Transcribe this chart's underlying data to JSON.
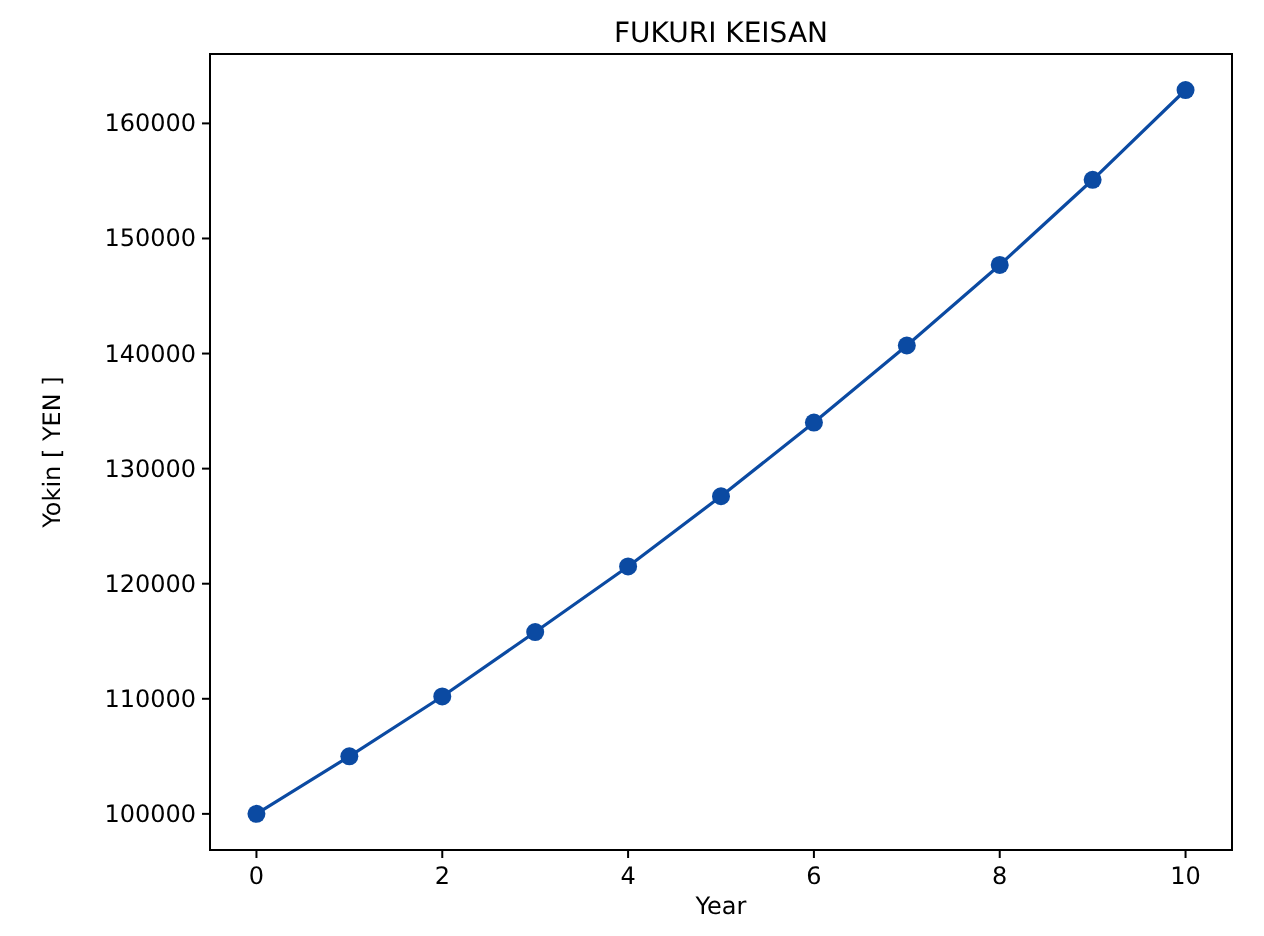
{
  "chart_data": {
    "type": "line",
    "title": "FUKURI KEISAN",
    "xlabel": "Year",
    "ylabel": "Yokin [ YEN ]",
    "x": [
      0,
      1,
      2,
      3,
      4,
      5,
      6,
      7,
      8,
      9,
      10
    ],
    "series": [
      {
        "color": "#0b4aa2",
        "values": [
          100000,
          105000,
          110200,
          115800,
          121500,
          127600,
          134000,
          140700,
          147700,
          155100,
          162900
        ]
      }
    ],
    "xlim": [
      -0.5,
      10.5
    ],
    "xticks": [
      0,
      2,
      4,
      6,
      8,
      10
    ],
    "ylim": [
      96860,
      166030
    ],
    "yticks": [
      100000,
      110000,
      120000,
      130000,
      140000,
      150000,
      160000
    ],
    "marker": "circle",
    "line_style": "solid",
    "grid": false
  }
}
